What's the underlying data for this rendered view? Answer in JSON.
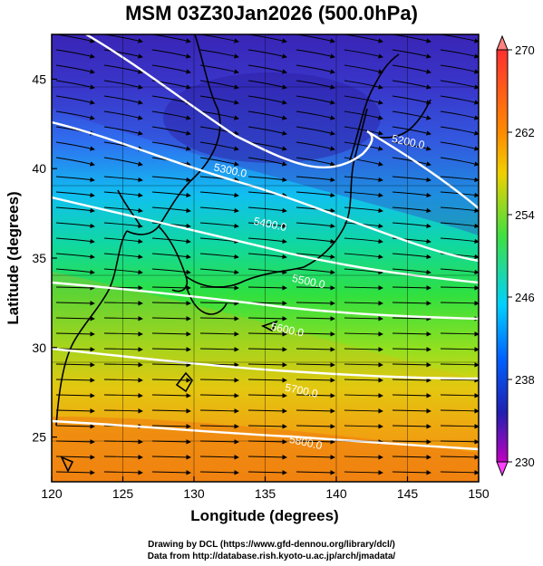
{
  "title": "MSM 03Z30Jan2026 (500.0hPa)",
  "xaxis": {
    "label": "Longitude (degrees)",
    "ticks": [
      120,
      125,
      130,
      135,
      140,
      145,
      150
    ],
    "range": [
      120,
      150
    ]
  },
  "yaxis": {
    "label": "Latitude  (degrees)",
    "ticks": [
      25,
      30,
      35,
      40,
      45
    ],
    "range": [
      22.5,
      47.5
    ]
  },
  "colorbar": {
    "ticks": [
      270,
      262,
      254,
      246,
      238,
      230
    ],
    "range": [
      230,
      270
    ],
    "colors": [
      "#ff9a9a",
      "#ff3030",
      "#ff8a00",
      "#f0c000",
      "#c8e000",
      "#40e040",
      "#00e090",
      "#00c8ff",
      "#0060ff",
      "#2020c0",
      "#a000c0",
      "#ff40ff"
    ]
  },
  "contours": [
    {
      "label": "5200.0",
      "lon": 145,
      "lat": 41.3
    },
    {
      "label": "5300.0",
      "lon": 132.5,
      "lat": 39.7
    },
    {
      "label": "5400.0",
      "lon": 135.3,
      "lat": 36.7
    },
    {
      "label": "5500.0",
      "lon": 138,
      "lat": 33.5
    },
    {
      "label": "5600.0",
      "lon": 136.5,
      "lat": 30.8
    },
    {
      "label": "5700.0",
      "lon": 137.5,
      "lat": 27.4
    },
    {
      "label": "5800.0",
      "lon": 137.8,
      "lat": 24.5
    }
  ],
  "credits": [
    "Drawing by DCL (https://www.gfd-dennou.org/library/dcl/)",
    "Data from http://database.rish.kyoto-u.ac.jp/arch/jmadata/"
  ]
}
